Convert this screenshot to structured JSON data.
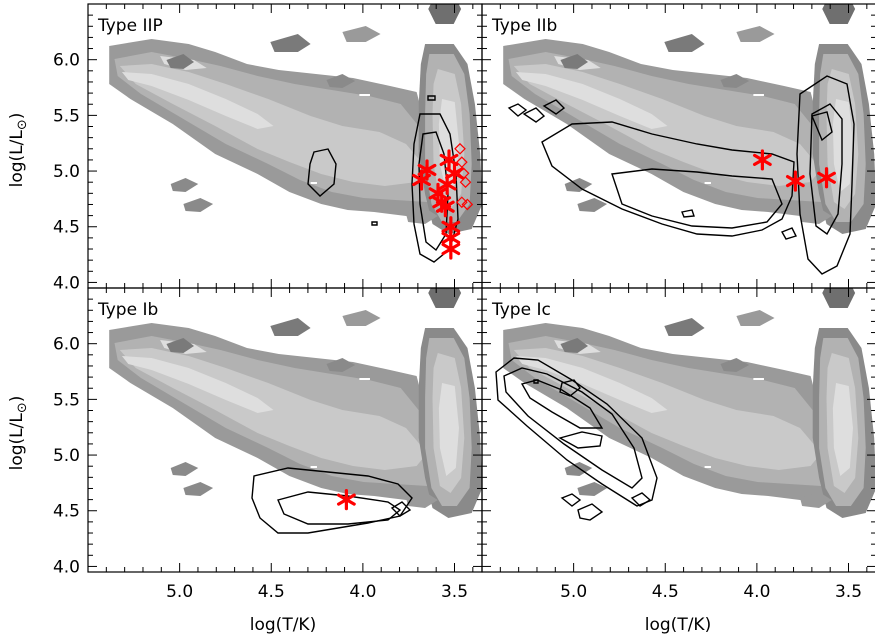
{
  "chart_data": {
    "type": "scatter",
    "xlabel": "log(T/K)",
    "ylabel": "log(L/L",
    "ylabel_symbol": "⊙",
    "ylabel_close": ")",
    "xlim": [
      5.5,
      3.35
    ],
    "ylim": [
      3.95,
      6.5
    ],
    "x_ticks": [
      "5.0",
      "4.5",
      "4.0",
      "3.5"
    ],
    "x_tick_values": [
      5.0,
      4.5,
      4.0,
      3.5
    ],
    "y_ticks": [
      "4.0",
      "4.5",
      "5.0",
      "5.5",
      "6.0"
    ],
    "y_tick_values": [
      4.0,
      4.5,
      5.0,
      5.5,
      6.0
    ],
    "grid": false,
    "colors": {
      "band_outer": "#9a9a9a",
      "band_mid": "#b2b2b2",
      "band_inner": "#c9c9c9",
      "band_core": "#dedede",
      "dark_blob": "#7a7a7a",
      "contour": "#000000",
      "marker": "#ff0000"
    },
    "panels": [
      {
        "title": "Type IIP",
        "stars": [
          {
            "x": 3.68,
            "y": 4.92
          },
          {
            "x": 3.65,
            "y": 5.01
          },
          {
            "x": 3.59,
            "y": 4.8
          },
          {
            "x": 3.57,
            "y": 4.72
          },
          {
            "x": 3.55,
            "y": 4.68
          },
          {
            "x": 3.54,
            "y": 4.88
          },
          {
            "x": 3.53,
            "y": 5.1
          },
          {
            "x": 3.52,
            "y": 4.5
          },
          {
            "x": 3.52,
            "y": 4.4
          },
          {
            "x": 3.52,
            "y": 4.3
          },
          {
            "x": 3.5,
            "y": 4.98
          }
        ],
        "diamonds": [
          {
            "x": 3.47,
            "y": 5.2
          },
          {
            "x": 3.46,
            "y": 5.08
          },
          {
            "x": 3.45,
            "y": 4.98
          },
          {
            "x": 3.44,
            "y": 4.9
          },
          {
            "x": 3.46,
            "y": 4.72
          },
          {
            "x": 3.43,
            "y": 4.7
          }
        ]
      },
      {
        "title": "Type IIb",
        "stars": [
          {
            "x": 3.97,
            "y": 5.1
          },
          {
            "x": 3.79,
            "y": 4.91
          },
          {
            "x": 3.62,
            "y": 4.94
          }
        ],
        "diamonds": []
      },
      {
        "title": "Type Ib",
        "stars": [
          {
            "x": 4.09,
            "y": 4.6
          }
        ],
        "diamonds": []
      },
      {
        "title": "Type Ic",
        "stars": [],
        "diamonds": []
      }
    ]
  }
}
